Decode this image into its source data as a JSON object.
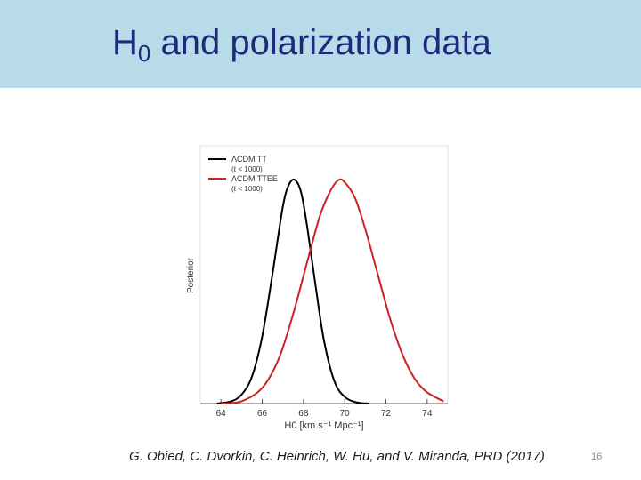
{
  "slide": {
    "title_main": "H",
    "title_sub": "0",
    "title_rest": " and polarization data",
    "citation": "G. Obied, C. Dvorkin, C. Heinrich, W. Hu, and V. Miranda, PRD  (2017)",
    "slide_number": "16",
    "colors": {
      "title_bar": "#b7dbe8",
      "title_text": "#1f2a7a"
    }
  },
  "chart_data": {
    "type": "line",
    "title": "",
    "ylabel": "Posterior",
    "xlabel": "H0 [km s⁻¹ Mpc⁻¹]",
    "xlim": [
      63,
      75
    ],
    "ylim": [
      0,
      1.05
    ],
    "x_ticks": [
      64,
      66,
      68,
      70,
      72,
      74
    ],
    "legend_position": "top",
    "series": [
      {
        "name": "ΛCDM TT",
        "sublabel": "(ℓ < 1000)",
        "color": "#000000",
        "x": [
          63.8,
          64.5,
          65.0,
          65.5,
          66.0,
          66.5,
          67.0,
          67.3,
          67.6,
          67.9,
          68.2,
          68.6,
          69.0,
          69.5,
          70.0,
          70.6,
          71.2
        ],
        "y": [
          0.0,
          0.01,
          0.04,
          0.12,
          0.3,
          0.58,
          0.88,
          0.98,
          1.0,
          0.94,
          0.78,
          0.52,
          0.28,
          0.1,
          0.03,
          0.005,
          0.0
        ]
      },
      {
        "name": "ΛCDM TTEE",
        "sublabel": "(ℓ < 1000)",
        "color": "#cc2222",
        "x": [
          64.0,
          65.0,
          66.0,
          66.8,
          67.5,
          68.2,
          68.8,
          69.3,
          69.7,
          70.0,
          70.5,
          71.0,
          71.6,
          72.2,
          72.8,
          73.4,
          74.0,
          74.8
        ],
        "y": [
          0.0,
          0.01,
          0.07,
          0.2,
          0.4,
          0.64,
          0.84,
          0.95,
          1.0,
          0.99,
          0.92,
          0.78,
          0.58,
          0.38,
          0.22,
          0.11,
          0.05,
          0.01
        ]
      }
    ]
  }
}
